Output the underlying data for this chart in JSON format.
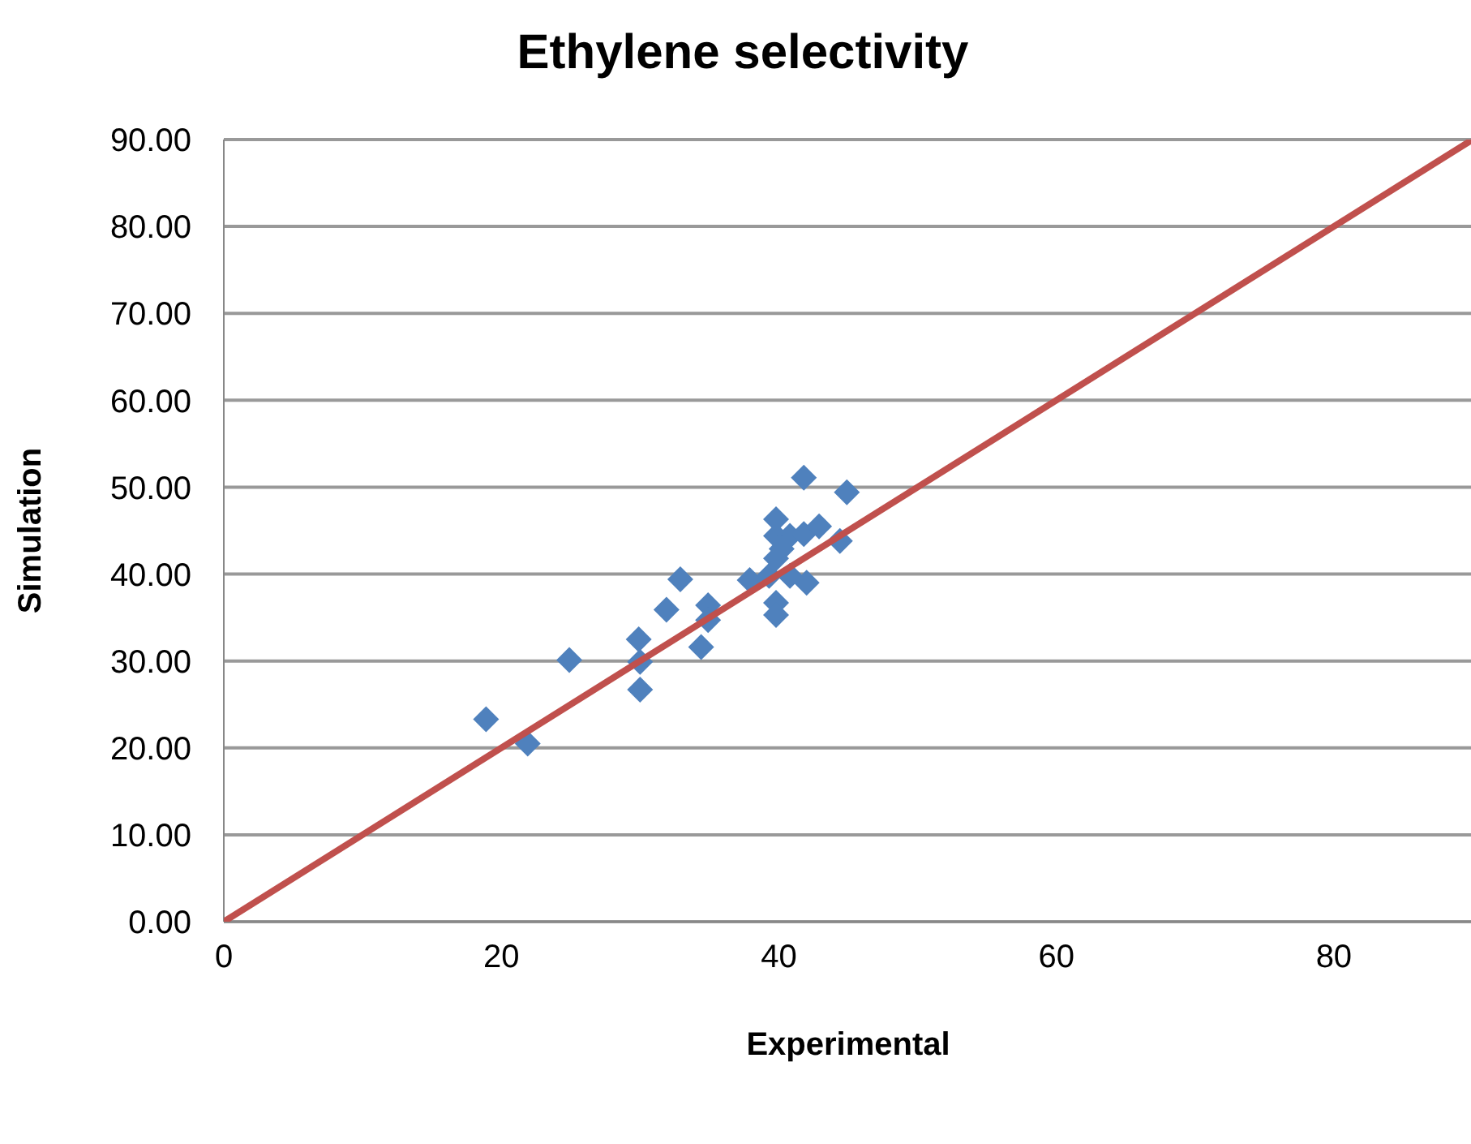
{
  "chart_data": {
    "type": "scatter",
    "title": "Ethylene selectivity",
    "xlabel": "Experimental",
    "ylabel": "Simulation",
    "xlim": [
      0,
      90
    ],
    "xticks": [
      0,
      20,
      40,
      60,
      80
    ],
    "ylim": [
      0,
      90
    ],
    "yticks": [
      {
        "value": 0,
        "label": "0.00"
      },
      {
        "value": 10,
        "label": "10.00"
      },
      {
        "value": 20,
        "label": "20.00"
      },
      {
        "value": 30,
        "label": "30.00"
      },
      {
        "value": 40,
        "label": "40.00"
      },
      {
        "value": 50,
        "label": "50.00"
      },
      {
        "value": 60,
        "label": "60.00"
      },
      {
        "value": 70,
        "label": "70.00"
      },
      {
        "value": 80,
        "label": "80.00"
      },
      {
        "value": 90,
        "label": "90.00"
      }
    ],
    "grid": "y",
    "legend": false,
    "series": [
      {
        "type": "scatter",
        "color": "#4f81bd",
        "marker": "diamond",
        "x": [
          18.9,
          21.9,
          24.9,
          29.9,
          30,
          30,
          31.9,
          32.9,
          34.4,
          34.9,
          34.9,
          37.9,
          39.3,
          39.8,
          39.8,
          39.8,
          39.8,
          39.8,
          40.8,
          40.8,
          41.8,
          42,
          41.8,
          42.9,
          44.4,
          44.9,
          40.2
        ],
        "values": [
          23.3,
          20.5,
          30.1,
          32.5,
          29.9,
          26.7,
          35.9,
          39.4,
          31.6,
          36.4,
          34.7,
          39.3,
          39.8,
          46.3,
          44.4,
          41.8,
          36.7,
          35.3,
          44.4,
          39.8,
          44.6,
          39,
          51.1,
          45.5,
          43.8,
          49.4,
          42.9
        ]
      },
      {
        "type": "line",
        "color": "#c0504d",
        "marker": "none",
        "x": [
          0,
          90
        ],
        "values": [
          0,
          90
        ]
      }
    ]
  }
}
